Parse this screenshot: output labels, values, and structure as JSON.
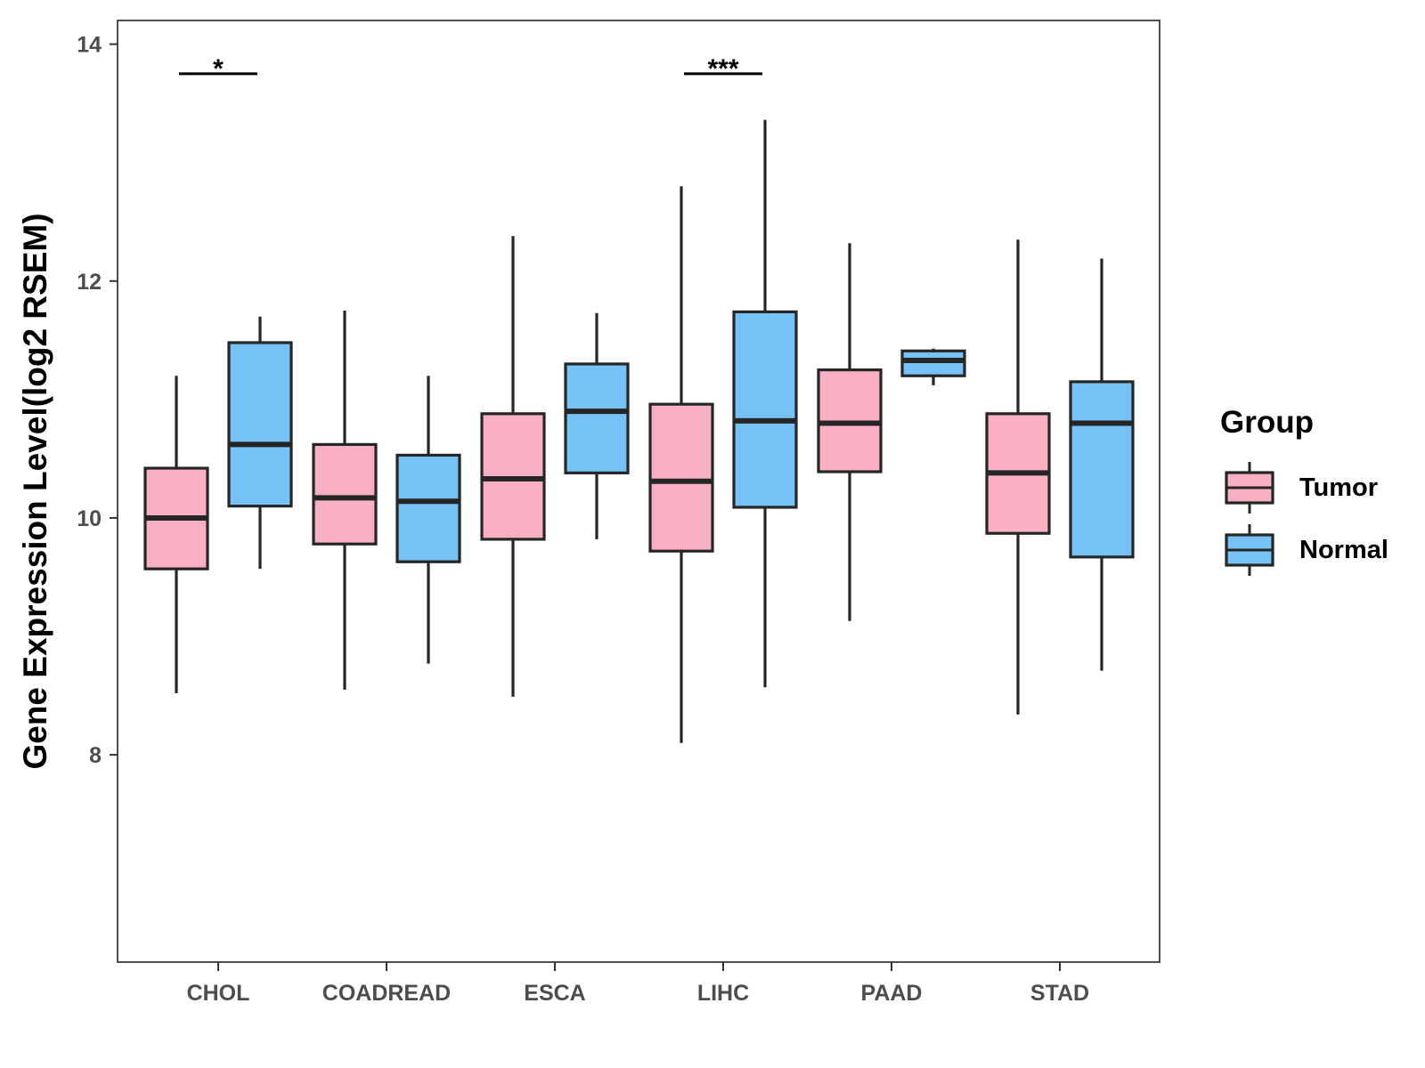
{
  "chart_data": {
    "type": "boxplot",
    "ylabel": "Gene Expression Level(log2 RSEM)",
    "xlabel": "",
    "ylim": [
      6.25,
      14.2
    ],
    "yticks": [
      8,
      10,
      12,
      14
    ],
    "ytick_labels": [
      "8",
      "10",
      "12",
      "14"
    ],
    "categories": [
      "CHOL",
      "COADREAD",
      "ESCA",
      "LIHC",
      "PAAD",
      "STAD"
    ],
    "legend": {
      "title": "Group",
      "placement": "right",
      "entries": [
        {
          "name": "Tumor",
          "color": "#f9b0c3"
        },
        {
          "name": "Normal",
          "color": "#76c1f6"
        }
      ]
    },
    "series": [
      {
        "name": "Tumor",
        "color": "#f9b0c3",
        "boxes": [
          {
            "category": "CHOL",
            "min": 8.52,
            "q1": 9.57,
            "median": 10.0,
            "q3": 10.42,
            "max": 11.2
          },
          {
            "category": "COADREAD",
            "min": 8.55,
            "q1": 9.78,
            "median": 10.17,
            "q3": 10.62,
            "max": 11.75
          },
          {
            "category": "ESCA",
            "min": 8.49,
            "q1": 9.82,
            "median": 10.33,
            "q3": 10.88,
            "max": 12.38
          },
          {
            "category": "LIHC",
            "min": 8.1,
            "q1": 9.72,
            "median": 10.31,
            "q3": 10.96,
            "max": 12.8
          },
          {
            "category": "PAAD",
            "min": 9.13,
            "q1": 10.39,
            "median": 10.8,
            "q3": 11.25,
            "max": 12.32
          },
          {
            "category": "STAD",
            "min": 8.34,
            "q1": 9.87,
            "median": 10.38,
            "q3": 10.88,
            "max": 12.35
          }
        ]
      },
      {
        "name": "Normal",
        "color": "#76c1f6",
        "boxes": [
          {
            "category": "CHOL",
            "min": 9.57,
            "q1": 10.1,
            "median": 10.62,
            "q3": 11.48,
            "max": 11.7
          },
          {
            "category": "COADREAD",
            "min": 8.77,
            "q1": 9.63,
            "median": 10.14,
            "q3": 10.53,
            "max": 11.2
          },
          {
            "category": "ESCA",
            "min": 9.82,
            "q1": 10.38,
            "median": 10.9,
            "q3": 11.3,
            "max": 11.73
          },
          {
            "category": "LIHC",
            "min": 8.57,
            "q1": 10.09,
            "median": 10.82,
            "q3": 11.74,
            "max": 13.36
          },
          {
            "category": "PAAD",
            "min": 11.12,
            "q1": 11.2,
            "median": 11.33,
            "q3": 11.41,
            "max": 11.43
          },
          {
            "category": "STAD",
            "min": 8.71,
            "q1": 9.67,
            "median": 10.8,
            "q3": 11.15,
            "max": 12.19
          }
        ]
      }
    ],
    "annotations": [
      {
        "category": "CHOL",
        "label": "*",
        "y": 13.75
      },
      {
        "category": "LIHC",
        "label": "***",
        "y": 13.75
      }
    ],
    "grid": false
  }
}
